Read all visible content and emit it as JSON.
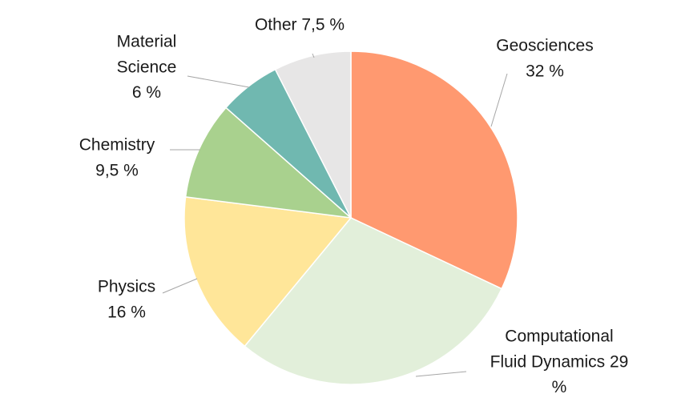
{
  "chart_data": {
    "type": "pie",
    "title": "",
    "start_angle_deg": 0,
    "direction": "clockwise",
    "slices": [
      {
        "name": "Geosciences",
        "value": 32,
        "color": "#FF9970",
        "label_lines": [
          "Geosciences",
          "32 %"
        ]
      },
      {
        "name": "Computational Fluid Dynamics",
        "value": 29,
        "color": "#E2EFDA",
        "label_lines": [
          "Computational",
          "Fluid Dynamics  29",
          "%"
        ]
      },
      {
        "name": "Physics",
        "value": 16,
        "color": "#FFE699",
        "label_lines": [
          "Physics",
          "16 %"
        ]
      },
      {
        "name": "Chemistry",
        "value": 9.5,
        "color": "#A9D18E",
        "label_lines": [
          "Chemistry",
          "9,5 %"
        ]
      },
      {
        "name": "Material Science",
        "value": 6,
        "color": "#70B8B0",
        "label_lines": [
          "Material",
          "Science",
          "6 %"
        ]
      },
      {
        "name": "Other",
        "value": 7.5,
        "color": "#E7E6E6",
        "label_lines": [
          "Other 7,5 %"
        ]
      }
    ],
    "legend": "none",
    "labels": "outside-with-leader-lines"
  }
}
